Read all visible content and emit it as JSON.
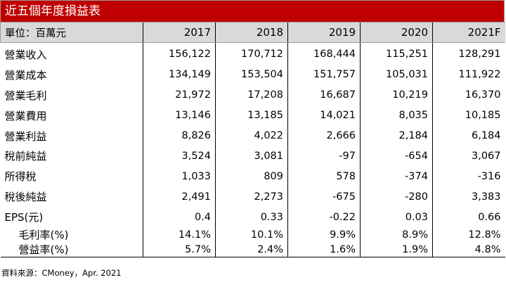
{
  "title": "近五個年度損益表",
  "header": {
    "unit": "單位：百萬元",
    "years": [
      "2017",
      "2018",
      "2019",
      "2020",
      "2021F"
    ]
  },
  "rows": [
    {
      "label": "營業收入",
      "values": [
        "156,122",
        "170,712",
        "168,444",
        "115,251",
        "128,291"
      ]
    },
    {
      "label": "營業成本",
      "values": [
        "134,149",
        "153,504",
        "151,757",
        "105,031",
        "111,922"
      ]
    },
    {
      "label": "營業毛利",
      "values": [
        "21,972",
        "17,208",
        "16,687",
        "10,219",
        "16,370"
      ]
    },
    {
      "label": "營業費用",
      "values": [
        "13,146",
        "13,185",
        "14,021",
        "8,035",
        "10,185"
      ]
    },
    {
      "label": "營業利益",
      "values": [
        "8,826",
        "4,022",
        "2,666",
        "2,184",
        "6,184"
      ]
    },
    {
      "label": "稅前純益",
      "values": [
        "3,524",
        "3,081",
        "-97",
        "-654",
        "3,067"
      ]
    },
    {
      "label": "所得稅",
      "values": [
        "1,033",
        "809",
        "578",
        "-374",
        "-316"
      ]
    },
    {
      "label": "稅後純益",
      "values": [
        "2,491",
        "2,273",
        "-675",
        "-280",
        "3,383"
      ]
    },
    {
      "label": "EPS(元)",
      "values": [
        "0.4",
        "0.33",
        "-0.22",
        "0.03",
        "0.66"
      ]
    },
    {
      "label": "毛利率(%)",
      "values": [
        "14.1%",
        "10.1%",
        "9.9%",
        "8.9%",
        "12.8%"
      ]
    },
    {
      "label": "營益率(%)",
      "values": [
        "5.7%",
        "2.4%",
        "1.6%",
        "1.9%",
        "4.8%"
      ]
    }
  ],
  "source": "資料來源：CMoney，Apr. 2021",
  "colors": {
    "title_bg": "#c00000",
    "header_bg": "#d9d9d9"
  }
}
